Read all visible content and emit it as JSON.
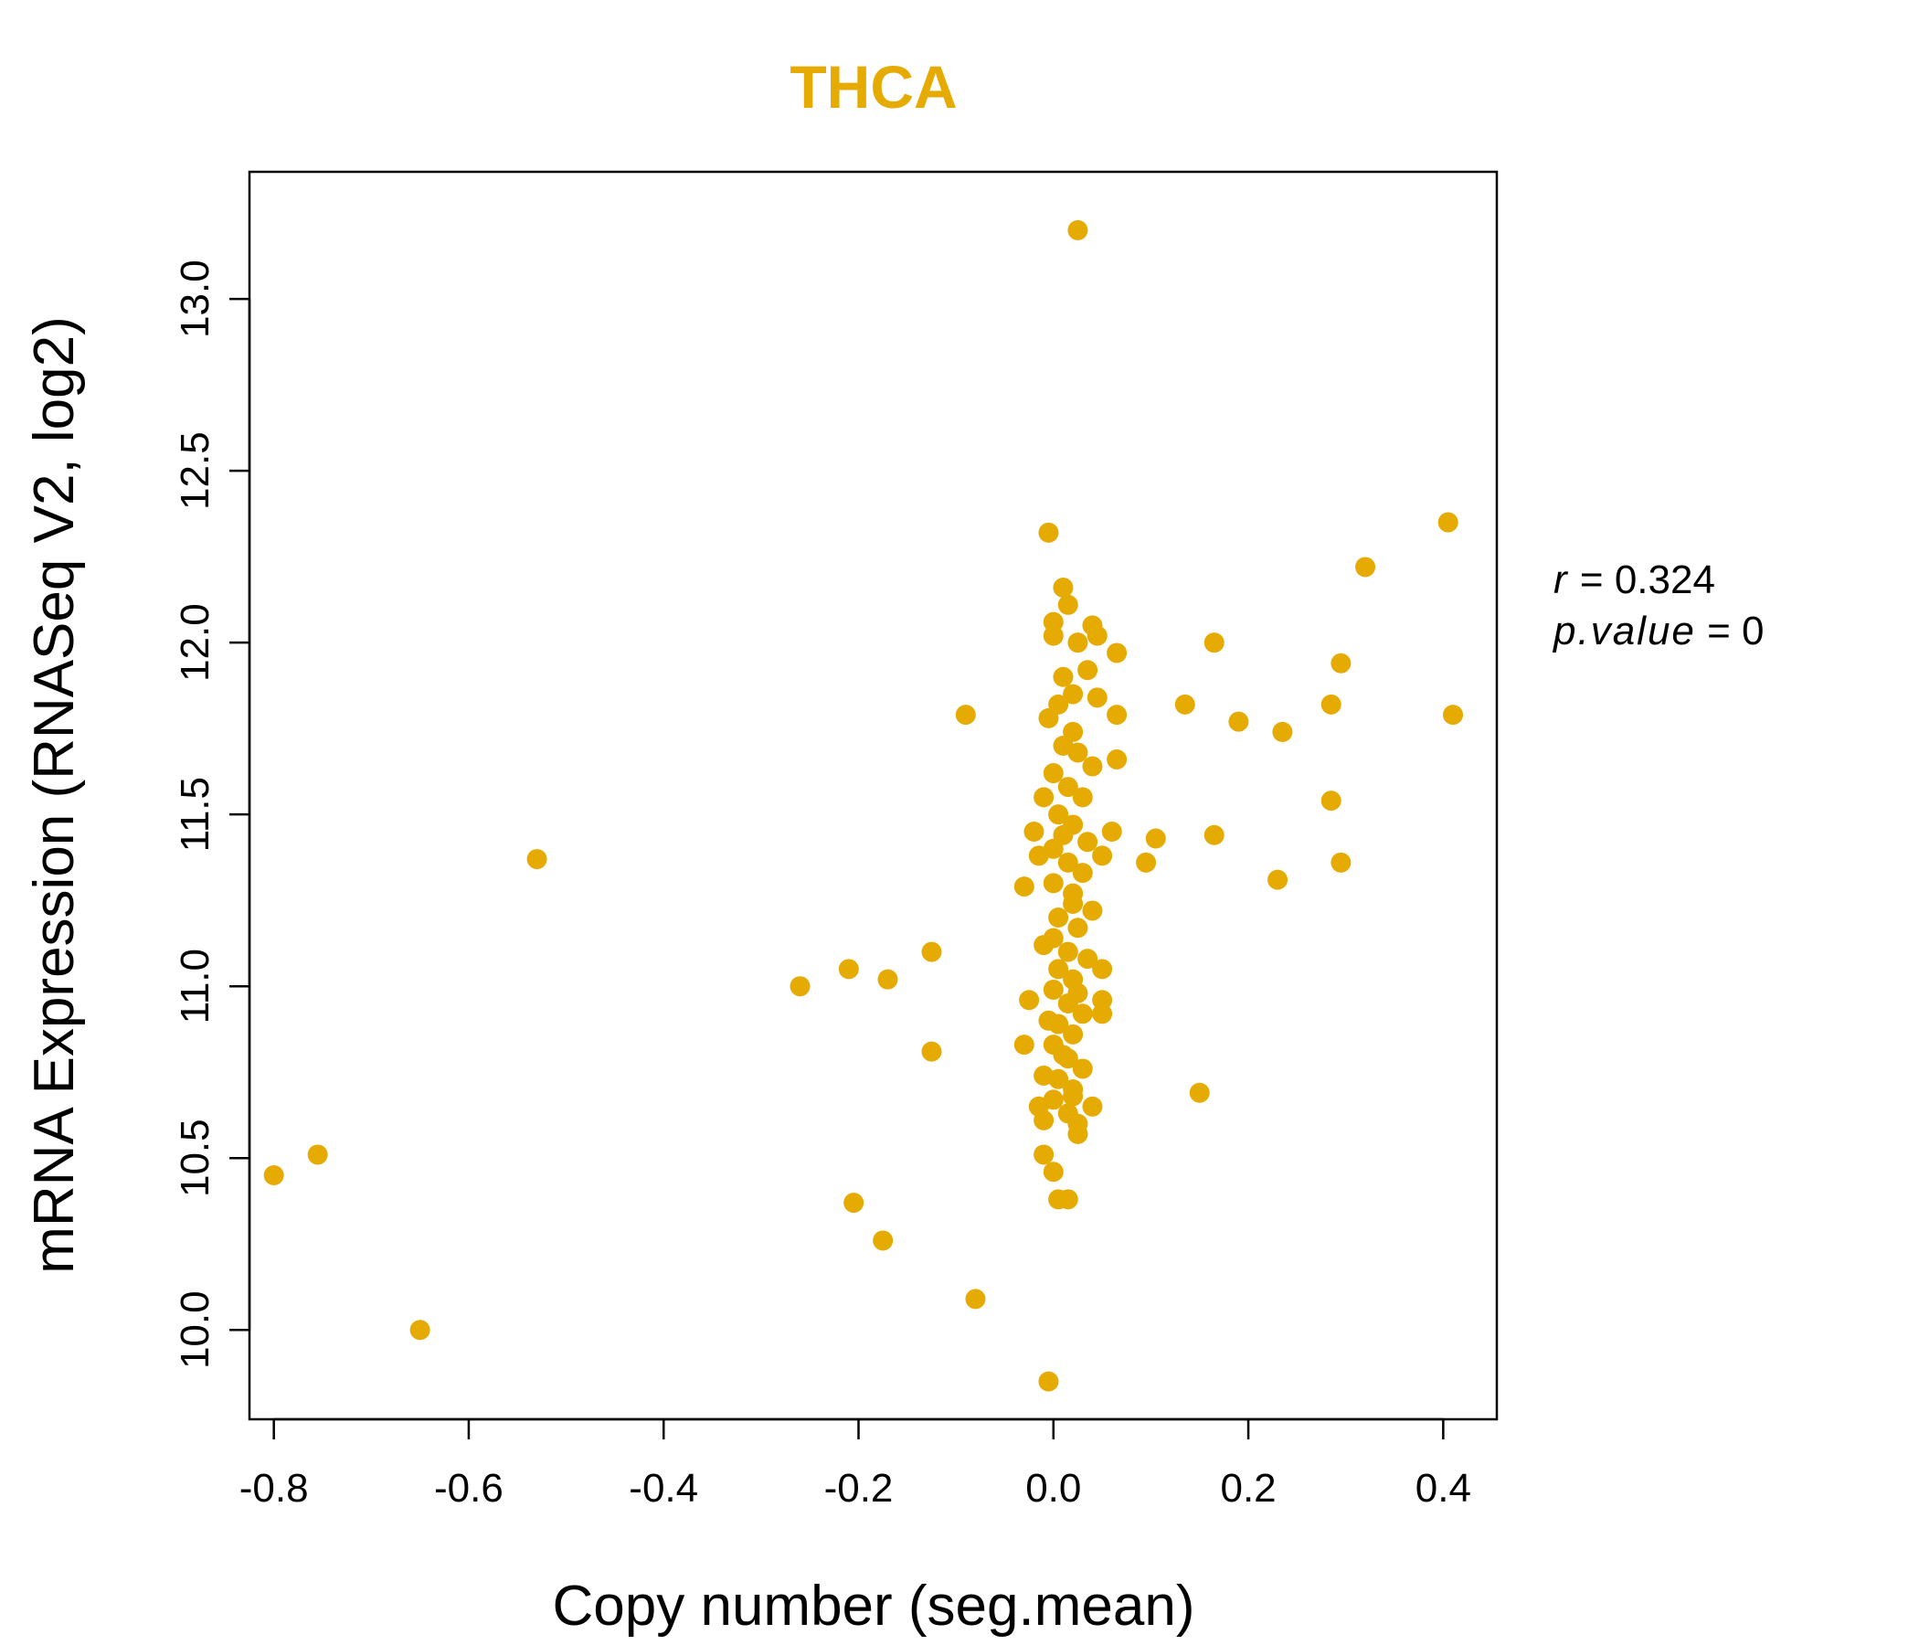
{
  "chart_data": {
    "type": "scatter",
    "title": "THCA",
    "xlabel": "Copy number (seg.mean)",
    "ylabel": "mRNA Expression (RNASeq V2, log2)",
    "xlim": [
      -0.825,
      0.455
    ],
    "ylim": [
      9.74,
      13.37
    ],
    "xticks": [
      -0.8,
      -0.6,
      -0.4,
      -0.2,
      0.0,
      0.2,
      0.4
    ],
    "xtick_labels": [
      "-0.8",
      "-0.6",
      "-0.4",
      "-0.2",
      "0.0",
      "0.2",
      "0.4"
    ],
    "yticks": [
      10.0,
      10.5,
      11.0,
      11.5,
      12.0,
      12.5,
      13.0
    ],
    "ytick_labels": [
      "10.0",
      "10.5",
      "11.0",
      "11.5",
      "12.0",
      "12.5",
      "13.0"
    ],
    "grid": false,
    "point_color": "#E6AB02",
    "series": [
      {
        "name": "samples",
        "points": [
          [
            -0.8,
            10.45
          ],
          [
            -0.755,
            10.51
          ],
          [
            -0.65,
            10.0
          ],
          [
            -0.53,
            11.37
          ],
          [
            -0.26,
            11.0
          ],
          [
            -0.21,
            11.05
          ],
          [
            -0.205,
            10.37
          ],
          [
            -0.17,
            11.02
          ],
          [
            -0.175,
            10.26
          ],
          [
            -0.125,
            11.1
          ],
          [
            -0.125,
            10.81
          ],
          [
            -0.09,
            11.79
          ],
          [
            -0.08,
            10.09
          ],
          [
            -0.005,
            9.85
          ],
          [
            -0.005,
            12.32
          ],
          [
            0.025,
            13.2
          ],
          [
            0.405,
            12.35
          ],
          [
            0.32,
            12.22
          ],
          [
            0.295,
            11.94
          ],
          [
            0.285,
            11.82
          ],
          [
            0.285,
            11.54
          ],
          [
            0.295,
            11.36
          ],
          [
            0.23,
            11.31
          ],
          [
            0.235,
            11.74
          ],
          [
            0.19,
            11.77
          ],
          [
            0.165,
            12.0
          ],
          [
            0.135,
            11.82
          ],
          [
            0.165,
            11.44
          ],
          [
            0.15,
            10.69
          ],
          [
            0.105,
            11.43
          ],
          [
            0.095,
            11.36
          ],
          [
            0.41,
            11.79
          ],
          [
            0.065,
            11.97
          ],
          [
            0.065,
            11.79
          ],
          [
            0.065,
            11.66
          ],
          [
            0.06,
            11.45
          ],
          [
            0.05,
            11.38
          ],
          [
            0.05,
            11.05
          ],
          [
            0.05,
            10.96
          ],
          [
            0.05,
            10.92
          ],
          [
            0.04,
            10.65
          ],
          [
            0.025,
            10.57
          ],
          [
            -0.01,
            10.51
          ],
          [
            0.0,
            10.46
          ],
          [
            0.005,
            10.38
          ],
          [
            0.015,
            10.38
          ],
          [
            -0.015,
            10.65
          ],
          [
            -0.01,
            10.61
          ],
          [
            -0.03,
            10.83
          ],
          [
            -0.025,
            10.96
          ],
          [
            -0.03,
            11.29
          ],
          [
            -0.02,
            11.45
          ],
          [
            0.0,
            12.06
          ],
          [
            0.0,
            12.02
          ],
          [
            0.01,
            12.16
          ],
          [
            0.015,
            12.11
          ],
          [
            0.04,
            12.05
          ],
          [
            0.045,
            12.02
          ],
          [
            0.025,
            12.0
          ],
          [
            0.035,
            11.92
          ],
          [
            0.045,
            11.84
          ],
          [
            0.005,
            11.82
          ],
          [
            0.02,
            11.74
          ],
          [
            0.04,
            11.64
          ],
          [
            0.01,
            11.7
          ],
          [
            0.0,
            11.62
          ],
          [
            0.015,
            11.58
          ],
          [
            0.03,
            11.55
          ],
          [
            0.005,
            11.5
          ],
          [
            0.02,
            11.47
          ],
          [
            0.035,
            11.42
          ],
          [
            0.0,
            11.4
          ],
          [
            0.015,
            11.36
          ],
          [
            0.03,
            11.33
          ],
          [
            0.0,
            11.3
          ],
          [
            0.02,
            11.27
          ],
          [
            0.04,
            11.22
          ],
          [
            0.005,
            11.2
          ],
          [
            0.025,
            11.17
          ],
          [
            0.0,
            11.14
          ],
          [
            0.015,
            11.1
          ],
          [
            0.035,
            11.08
          ],
          [
            0.005,
            11.05
          ],
          [
            0.02,
            11.02
          ],
          [
            0.0,
            10.99
          ],
          [
            0.015,
            10.95
          ],
          [
            0.03,
            10.92
          ],
          [
            0.005,
            10.89
          ],
          [
            0.02,
            10.86
          ],
          [
            0.0,
            10.83
          ],
          [
            0.015,
            10.79
          ],
          [
            0.03,
            10.76
          ],
          [
            0.005,
            10.73
          ],
          [
            0.02,
            10.7
          ],
          [
            0.0,
            10.67
          ],
          [
            0.015,
            10.63
          ],
          [
            0.025,
            10.6
          ],
          [
            0.01,
            11.9
          ],
          [
            0.02,
            11.85
          ],
          [
            -0.005,
            11.78
          ],
          [
            0.025,
            11.68
          ],
          [
            -0.01,
            11.55
          ],
          [
            0.01,
            11.44
          ],
          [
            -0.015,
            11.38
          ],
          [
            0.02,
            11.24
          ],
          [
            -0.01,
            11.12
          ],
          [
            0.025,
            10.98
          ],
          [
            -0.005,
            10.9
          ],
          [
            0.01,
            10.8
          ],
          [
            -0.01,
            10.74
          ],
          [
            0.02,
            10.68
          ]
        ]
      }
    ],
    "annotations": {
      "r_label": "r",
      "r_value": "0.324",
      "p_label": "p.value",
      "p_value": "0"
    }
  }
}
